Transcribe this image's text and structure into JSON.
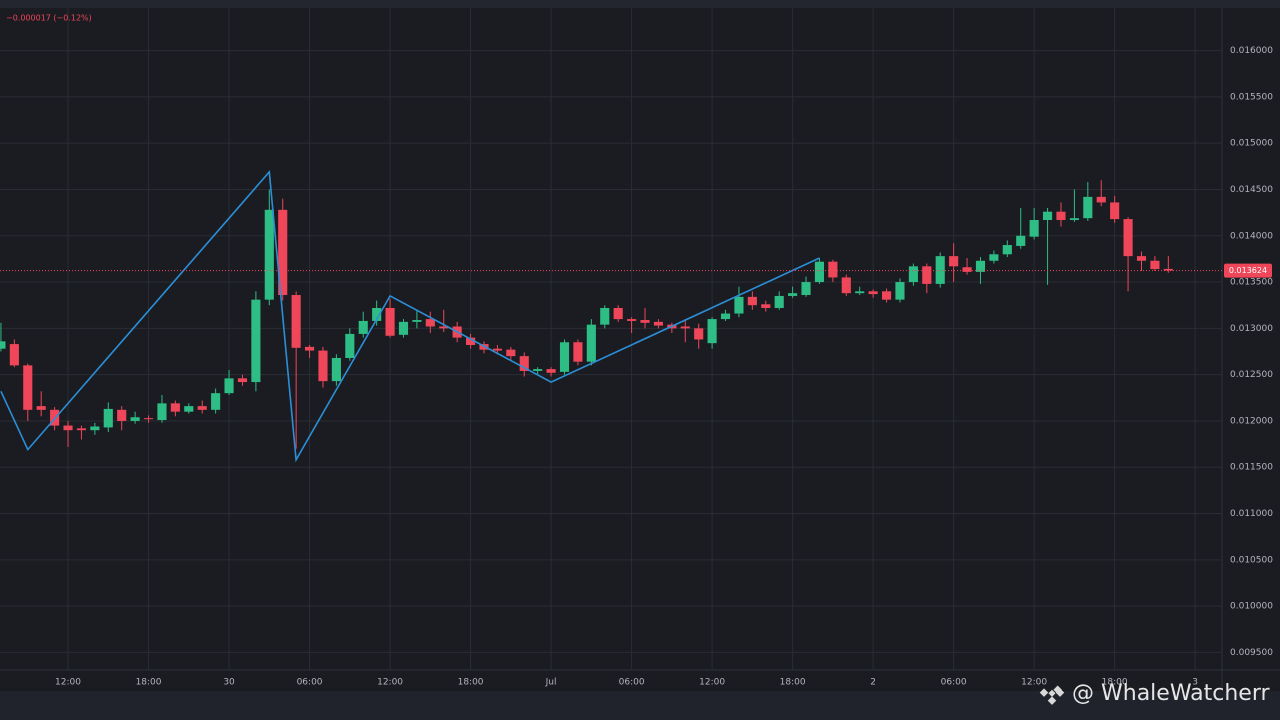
{
  "chart_data": {
    "type": "candlestick",
    "header": "−0.000017 (−0.12%)",
    "watermark": "@ WhaleWatcherr",
    "x": [
      7,
      8,
      9,
      10,
      11,
      12,
      13,
      14,
      15,
      16,
      17,
      18,
      19,
      20,
      21,
      22,
      23,
      24,
      25,
      26,
      27,
      28,
      29,
      30,
      31,
      32,
      33,
      34,
      35,
      36,
      37,
      38,
      39,
      40,
      41,
      42,
      43,
      44,
      45,
      46,
      47,
      48,
      49,
      50,
      51,
      52,
      53,
      54,
      55,
      56,
      57,
      58,
      59,
      60,
      61,
      62,
      63,
      64,
      65,
      66,
      67,
      68,
      69,
      70,
      71,
      72,
      73,
      74,
      75,
      76,
      77,
      78,
      79,
      80,
      81,
      82,
      83,
      84,
      85,
      86,
      87,
      88,
      89,
      90,
      91,
      92,
      93,
      94
    ],
    "open": [
      0.01278,
      0.01283,
      0.0126,
      0.01216,
      0.01212,
      0.01195,
      0.01192,
      0.0119,
      0.01193,
      0.01212,
      0.012,
      0.01203,
      0.01201,
      0.01219,
      0.0121,
      0.01216,
      0.01212,
      0.0123,
      0.01246,
      0.01242,
      0.01331,
      0.01428,
      0.01336,
      0.0128,
      0.01276,
      0.01243,
      0.01268,
      0.01294,
      0.01308,
      0.01322,
      0.01293,
      0.01307,
      0.0131,
      0.01302,
      0.01302,
      0.0129,
      0.01283,
      0.01278,
      0.01277,
      0.0127,
      0.01254,
      0.01256,
      0.01253,
      0.01285,
      0.01264,
      0.01304,
      0.01322,
      0.0131,
      0.01309,
      0.01307,
      0.01304,
      0.01302,
      0.013,
      0.01284,
      0.0131,
      0.01316,
      0.01334,
      0.01326,
      0.01322,
      0.01335,
      0.01336,
      0.0135,
      0.01372,
      0.01355,
      0.01338,
      0.0134,
      0.0134,
      0.01331,
      0.0135,
      0.01367,
      0.01348,
      0.01378,
      0.01366,
      0.01361,
      0.01373,
      0.0138,
      0.01389,
      0.01399,
      0.01417,
      0.01426,
      0.01417,
      0.01419,
      0.01442,
      0.01436,
      0.01418,
      0.01378,
      0.01373,
      0.013642
    ],
    "high": [
      0.01306,
      0.01288,
      0.01262,
      0.01232,
      0.01215,
      0.012,
      0.01195,
      0.01198,
      0.0122,
      0.01216,
      0.0121,
      0.01206,
      0.01228,
      0.01222,
      0.01219,
      0.01222,
      0.01235,
      0.01255,
      0.0125,
      0.0134,
      0.0145,
      0.0144,
      0.0134,
      0.01282,
      0.0128,
      0.01272,
      0.013,
      0.01318,
      0.0133,
      0.01332,
      0.0131,
      0.0132,
      0.01318,
      0.0132,
      0.01307,
      0.01294,
      0.01286,
      0.01282,
      0.0128,
      0.01274,
      0.01258,
      0.01258,
      0.01288,
      0.01288,
      0.0131,
      0.01325,
      0.01325,
      0.01312,
      0.01322,
      0.0131,
      0.01306,
      0.0131,
      0.01305,
      0.01312,
      0.0132,
      0.01345,
      0.0134,
      0.0133,
      0.0134,
      0.01345,
      0.01356,
      0.01376,
      0.01374,
      0.01358,
      0.01345,
      0.01342,
      0.01343,
      0.01354,
      0.0137,
      0.0137,
      0.01382,
      0.01392,
      0.01376,
      0.01377,
      0.01384,
      0.01395,
      0.0143,
      0.0143,
      0.0143,
      0.01436,
      0.0145,
      0.01458,
      0.0146,
      0.01443,
      0.0142,
      0.01383,
      0.01378,
      0.01378
    ],
    "low": [
      0.01275,
      0.01258,
      0.012,
      0.01205,
      0.0119,
      0.01172,
      0.0118,
      0.01185,
      0.01188,
      0.0119,
      0.01197,
      0.01198,
      0.01198,
      0.01205,
      0.01208,
      0.01208,
      0.01208,
      0.01228,
      0.01238,
      0.01232,
      0.01325,
      0.0133,
      0.0117,
      0.01268,
      0.01236,
      0.01238,
      0.01265,
      0.0129,
      0.01303,
      0.0129,
      0.0129,
      0.013,
      0.01295,
      0.01296,
      0.01285,
      0.01278,
      0.01273,
      0.01272,
      0.01266,
      0.01248,
      0.0125,
      0.01248,
      0.0125,
      0.0126,
      0.0126,
      0.013,
      0.01307,
      0.01295,
      0.013,
      0.013,
      0.01295,
      0.01285,
      0.01278,
      0.01278,
      0.01308,
      0.01312,
      0.0132,
      0.01318,
      0.0132,
      0.01333,
      0.01334,
      0.01348,
      0.0135,
      0.01335,
      0.01336,
      0.01333,
      0.01328,
      0.01328,
      0.01346,
      0.01338,
      0.01344,
      0.0135,
      0.01358,
      0.01348,
      0.0137,
      0.01377,
      0.01386,
      0.01396,
      0.01347,
      0.0141,
      0.01415,
      0.01416,
      0.01432,
      0.01414,
      0.0134,
      0.01362,
      0.01362,
      0.0136
    ],
    "close": [
      0.01286,
      0.0126,
      0.01212,
      0.01212,
      0.01195,
      0.0119,
      0.0119,
      0.01194,
      0.01213,
      0.012,
      0.01204,
      0.01202,
      0.01219,
      0.0121,
      0.01216,
      0.01212,
      0.0123,
      0.01246,
      0.01242,
      0.01331,
      0.01428,
      0.01336,
      0.01279,
      0.01276,
      0.01243,
      0.01268,
      0.01294,
      0.01308,
      0.01322,
      0.01292,
      0.01307,
      0.01309,
      0.01302,
      0.013,
      0.0129,
      0.01282,
      0.01277,
      0.01276,
      0.0127,
      0.01254,
      0.01256,
      0.01252,
      0.01285,
      0.01264,
      0.01304,
      0.01322,
      0.0131,
      0.01308,
      0.01306,
      0.01303,
      0.013,
      0.013,
      0.01288,
      0.0131,
      0.01316,
      0.01334,
      0.01325,
      0.01322,
      0.01335,
      0.01338,
      0.0135,
      0.01372,
      0.01355,
      0.01338,
      0.0134,
      0.01337,
      0.01331,
      0.0135,
      0.01367,
      0.01348,
      0.01378,
      0.01367,
      0.01361,
      0.01373,
      0.0138,
      0.0139,
      0.014,
      0.01417,
      0.01426,
      0.01417,
      0.01419,
      0.01442,
      0.01436,
      0.01418,
      0.01378,
      0.01373,
      0.01364,
      0.013624
    ],
    "up_color": "#2ebd85",
    "down_color": "#f0465a",
    "zigzag": {
      "color": "#2b8fd8",
      "x": [
        7,
        9,
        27,
        29,
        36,
        48,
        68
      ],
      "values": [
        0.01232,
        0.01169,
        0.01469,
        0.01158,
        0.01335,
        0.01242,
        0.01376
      ]
    },
    "last_price": 0.013624,
    "last_price_color": "#f0465a",
    "xlim": [
      6.93,
      98.0
    ],
    "xticks": [
      {
        "value": 12,
        "label": "12:00"
      },
      {
        "value": 18,
        "label": "18:00"
      },
      {
        "value": 24,
        "label": "30"
      },
      {
        "value": 30,
        "label": "06:00"
      },
      {
        "value": 36,
        "label": "12:00"
      },
      {
        "value": 42,
        "label": "18:00"
      },
      {
        "value": 48,
        "label": "Jul"
      },
      {
        "value": 54,
        "label": "06:00"
      },
      {
        "value": 60,
        "label": "12:00"
      },
      {
        "value": 66,
        "label": "18:00"
      },
      {
        "value": 72,
        "label": "2"
      },
      {
        "value": 78,
        "label": "06:00"
      },
      {
        "value": 84,
        "label": "12:00"
      },
      {
        "value": 90,
        "label": "18:00"
      },
      {
        "value": 96,
        "label": "3"
      }
    ],
    "ylim": [
      0.00931,
      0.01646
    ],
    "yticks": [
      {
        "value": 0.0095,
        "label": "0.009500"
      },
      {
        "value": 0.01,
        "label": "0.010000"
      },
      {
        "value": 0.0105,
        "label": "0.010500"
      },
      {
        "value": 0.011,
        "label": "0.011000"
      },
      {
        "value": 0.0115,
        "label": "0.011500"
      },
      {
        "value": 0.012,
        "label": "0.012000"
      },
      {
        "value": 0.0125,
        "label": "0.012500"
      },
      {
        "value": 0.013,
        "label": "0.013000"
      },
      {
        "value": 0.0135,
        "label": "0.013500"
      },
      {
        "value": 0.014,
        "label": "0.014000"
      },
      {
        "value": 0.0145,
        "label": "0.014500"
      },
      {
        "value": 0.015,
        "label": "0.015000"
      },
      {
        "value": 0.0155,
        "label": "0.015500"
      },
      {
        "value": 0.016,
        "label": "0.016000"
      }
    ],
    "grid": true
  }
}
